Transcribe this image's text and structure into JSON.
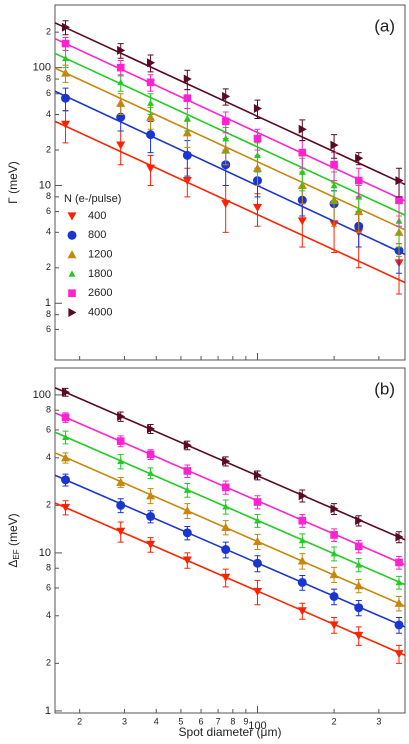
{
  "chart_data": [
    {
      "type": "scatter",
      "panel_label": "(a)",
      "ylabel": {
        "symbol": "Γ",
        "unit": "(meV)"
      },
      "log_x": true,
      "log_y": true,
      "legend": {
        "title": "N (e-/pulse)",
        "position": "left"
      },
      "x": [
        17.6,
        29,
        38,
        53,
        75,
        100,
        150,
        200,
        250,
        360
      ],
      "xlim": [
        16,
        380
      ],
      "xticks": [
        20,
        30,
        40,
        50,
        60,
        70,
        80,
        90,
        100,
        200,
        300
      ],
      "ylim": [
        0.33,
        340
      ],
      "yticks": [
        {
          "value": 0.6,
          "label": "6"
        },
        {
          "value": 0.8,
          "label": "8"
        },
        1,
        {
          "value": 2,
          "label": "2"
        },
        {
          "value": 4,
          "label": "4"
        },
        {
          "value": 6,
          "label": "6"
        },
        {
          "value": 8,
          "label": "8"
        },
        10,
        {
          "value": 20,
          "label": "2"
        },
        {
          "value": 40,
          "label": "4"
        },
        {
          "value": 60,
          "label": "6"
        },
        {
          "value": 80,
          "label": "8"
        },
        100,
        {
          "value": 200,
          "label": "2"
        }
      ],
      "series": [
        {
          "name": "400",
          "color": "#ff2200",
          "marker": "triangle-down",
          "values": [
            33,
            22,
            14,
            11,
            7,
            6.5,
            5,
            4.7,
            4,
            2.2
          ],
          "errors": [
            10,
            7,
            4,
            3,
            3,
            2,
            2,
            2,
            2,
            1
          ],
          "fit": [
            35,
            1.5
          ]
        },
        {
          "name": "800",
          "color": "#1a36d0",
          "marker": "circle",
          "values": [
            55,
            38,
            27,
            18,
            15,
            11,
            7.5,
            7,
            4.5,
            2.8
          ],
          "errors": [
            12,
            9,
            8,
            6,
            5,
            3,
            2,
            2,
            1.5,
            1
          ],
          "fit": [
            63,
            2.6
          ]
        },
        {
          "name": "1200",
          "color": "#c8870a",
          "marker": "triangle-up",
          "values": [
            90,
            50,
            38,
            28,
            20,
            14,
            10,
            7.5,
            6,
            4
          ],
          "errors": [
            15,
            10,
            8,
            7,
            5,
            4,
            3,
            3,
            2,
            1.5
          ],
          "fit": [
            99,
            4.2
          ]
        },
        {
          "name": "1800",
          "color": "#22cc22",
          "marker": "triangle-up-small",
          "values": [
            120,
            75,
            50,
            37,
            25,
            18,
            13,
            10,
            8,
            5
          ],
          "errors": [
            20,
            12,
            10,
            8,
            6,
            5,
            4,
            3,
            2,
            2
          ],
          "fit": [
            132,
            5.6
          ]
        },
        {
          "name": "2600",
          "color": "#ff22d0",
          "marker": "square",
          "values": [
            160,
            100,
            75,
            55,
            35,
            25,
            19,
            15,
            11,
            7.5
          ],
          "errors": [
            20,
            15,
            12,
            10,
            7,
            5,
            5,
            4,
            3,
            3
          ],
          "fit": [
            176,
            7.4
          ]
        },
        {
          "name": "4000",
          "color": "#5a0a22",
          "marker": "triangle-right",
          "values": [
            220,
            140,
            110,
            80,
            57,
            45,
            30,
            22,
            17,
            11
          ],
          "errors": [
            30,
            20,
            18,
            15,
            9,
            8,
            6,
            5,
            2,
            3
          ],
          "fit": [
            240,
            10.2
          ]
        }
      ]
    },
    {
      "type": "scatter",
      "panel_label": "(b)",
      "ylabel": {
        "symbol": "Δ",
        "subscript": "EF",
        "unit": "(meV)"
      },
      "xlabel": "Spot diameter (μm)",
      "log_x": true,
      "log_y": true,
      "x": [
        17.6,
        29,
        38,
        53,
        75,
        100,
        150,
        200,
        250,
        360
      ],
      "xlim": [
        16,
        380
      ],
      "xticks": [
        {
          "value": 20,
          "label": "2"
        },
        {
          "value": 30,
          "label": "3"
        },
        {
          "value": 40,
          "label": "4"
        },
        {
          "value": 50,
          "label": "5"
        },
        {
          "value": 60,
          "label": "6"
        },
        {
          "value": 70,
          "label": "7"
        },
        {
          "value": 80,
          "label": "8"
        },
        {
          "value": 90,
          "label": "9"
        },
        100,
        {
          "value": 200,
          "label": "2"
        },
        {
          "value": 300,
          "label": "3"
        }
      ],
      "ylim": [
        0.97,
        148
      ],
      "yticks": [
        1,
        {
          "value": 2,
          "label": "2"
        },
        {
          "value": 4,
          "label": "4"
        },
        {
          "value": 6,
          "label": "6"
        },
        {
          "value": 8,
          "label": "8"
        },
        10,
        {
          "value": 20,
          "label": "2"
        },
        {
          "value": 40,
          "label": "4"
        },
        {
          "value": 60,
          "label": "6"
        },
        {
          "value": 80,
          "label": "8"
        },
        100
      ],
      "series": [
        {
          "name": "400",
          "color": "#ff2200",
          "marker": "triangle-down",
          "values": [
            19.4,
            13.7,
            11.3,
            9,
            7,
            5.7,
            4.3,
            3.5,
            3,
            2.3
          ],
          "errors": [
            2,
            2,
            1.2,
            1,
            0.9,
            1,
            0.5,
            0.4,
            0.4,
            0.3
          ],
          "fit": [
            20.7,
            2.25
          ]
        },
        {
          "name": "800",
          "color": "#1a36d0",
          "marker": "circle",
          "values": [
            29,
            20,
            17,
            13.4,
            10.5,
            8.6,
            6.5,
            5.3,
            4.5,
            3.5
          ],
          "errors": [
            2.5,
            2,
            1.5,
            1.3,
            1.2,
            1,
            0.7,
            0.6,
            0.5,
            0.4
          ],
          "fit": [
            31,
            3.4
          ]
        },
        {
          "name": "1200",
          "color": "#c8870a",
          "marker": "triangle-up",
          "values": [
            40,
            28,
            23,
            18.5,
            14.5,
            11.8,
            8.9,
            7.3,
            6.2,
            4.8
          ],
          "errors": [
            3,
            2,
            2.5,
            2,
            1.5,
            1.3,
            1,
            0.8,
            0.6,
            0.5
          ],
          "fit": [
            43,
            4.6
          ]
        },
        {
          "name": "1800",
          "color": "#22cc22",
          "marker": "triangle-up-small",
          "values": [
            54,
            38,
            32,
            25,
            19.6,
            16,
            12,
            9.9,
            8.4,
            6.5
          ],
          "errors": [
            5,
            4,
            2.5,
            2.5,
            2,
            1.5,
            1.2,
            1,
            0.8,
            0.6
          ],
          "fit": [
            58,
            6.3
          ]
        },
        {
          "name": "2600",
          "color": "#ff22d0",
          "marker": "square",
          "values": [
            72,
            51,
            42,
            33,
            26,
            21,
            16,
            13,
            11,
            8.7
          ],
          "errors": [
            5,
            4,
            3,
            3,
            2.5,
            2,
            1.5,
            1.2,
            1,
            0.8
          ],
          "fit": [
            77,
            8.4
          ]
        },
        {
          "name": "4000",
          "color": "#5a0a22",
          "marker": "triangle-right",
          "values": [
            104,
            73,
            61,
            48,
            38,
            31,
            23,
            19,
            16,
            12.6
          ],
          "errors": [
            6,
            5,
            4,
            3,
            2.5,
            2,
            2,
            1.5,
            1.2,
            1
          ],
          "fit": [
            111,
            12.1
          ]
        }
      ]
    }
  ]
}
